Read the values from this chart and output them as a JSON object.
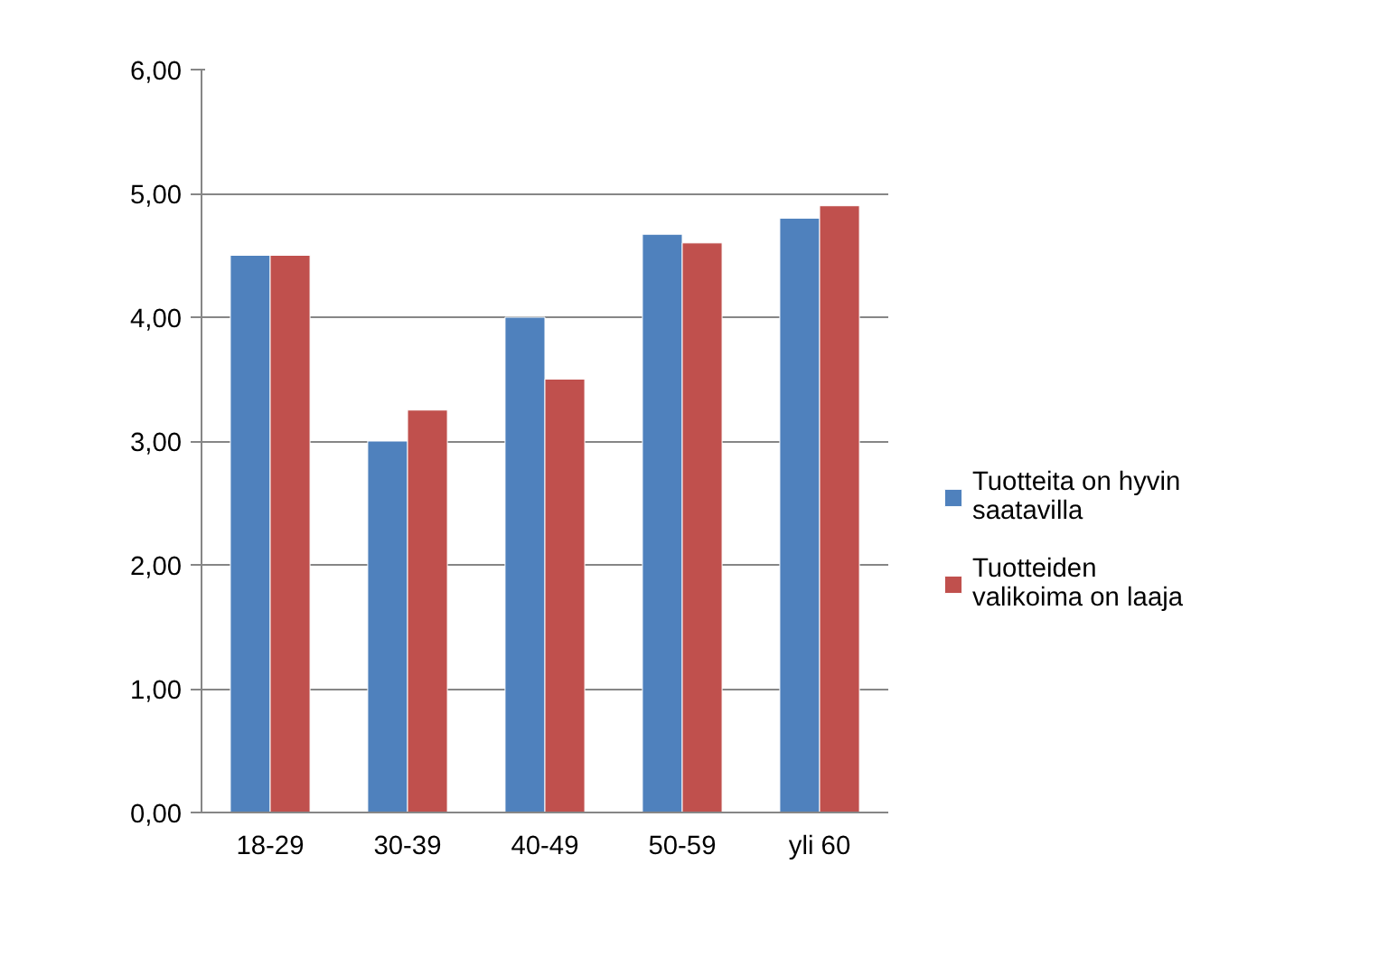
{
  "chart_data": {
    "type": "bar",
    "categories": [
      "18-29",
      "30-39",
      "40-49",
      "50-59",
      "yli 60"
    ],
    "series": [
      {
        "name": "Tuotteita on hyvin saatavilla",
        "color": "#4f81bd",
        "values": [
          4.5,
          3.0,
          4.0,
          4.67,
          4.8
        ]
      },
      {
        "name": "Tuotteiden valikoima on laaja",
        "color": "#c0504d",
        "values": [
          4.5,
          3.25,
          3.5,
          4.6,
          4.9
        ]
      }
    ],
    "ylim": [
      0,
      6
    ],
    "yticks": [
      {
        "value": 0,
        "label": "0,00"
      },
      {
        "value": 1,
        "label": "1,00"
      },
      {
        "value": 2,
        "label": "2,00"
      },
      {
        "value": 3,
        "label": "3,00"
      },
      {
        "value": 4,
        "label": "4,00"
      },
      {
        "value": 5,
        "label": "5,00"
      },
      {
        "value": 6,
        "label": "6,00"
      }
    ],
    "grid": "y",
    "legend": "right"
  }
}
